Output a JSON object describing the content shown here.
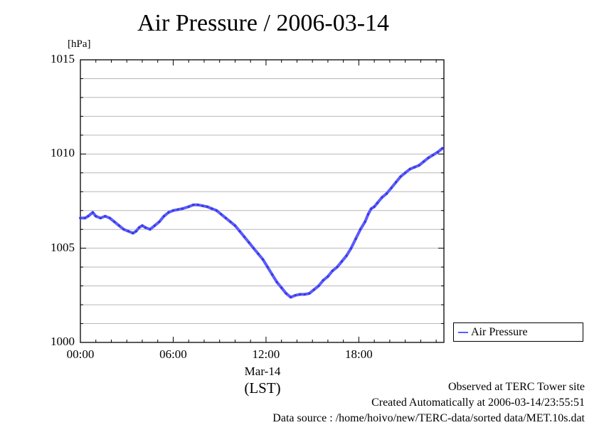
{
  "chart_data": {
    "type": "line",
    "title": "Air Pressure / 2006-03-14",
    "ylabel": "[hPa]",
    "xlabel_date": "Mar-14",
    "xlabel_tz": "(LST)",
    "ylim": [
      1000,
      1015
    ],
    "xlim": [
      0,
      23.5
    ],
    "y_ticks": [
      "1015",
      "1010",
      "1005",
      "1000"
    ],
    "y_tick_values": [
      1015,
      1010,
      1005,
      1000
    ],
    "x_ticks": [
      "00:00",
      "06:00",
      "12:00",
      "18:00"
    ],
    "x_tick_values": [
      0,
      6,
      12,
      18
    ],
    "grid": true,
    "legend_position": "bottom-right, outside plot",
    "color": "#5b5bff",
    "series": [
      {
        "name": "Air Pressure",
        "x": [
          0.0,
          0.3,
          0.5,
          0.8,
          1.0,
          1.3,
          1.6,
          1.9,
          2.2,
          2.5,
          2.8,
          3.1,
          3.4,
          3.6,
          3.8,
          4.0,
          4.2,
          4.5,
          4.8,
          5.1,
          5.4,
          5.7,
          6.0,
          6.3,
          6.6,
          7.0,
          7.3,
          7.6,
          7.9,
          8.2,
          8.5,
          8.8,
          9.1,
          9.4,
          9.7,
          10.0,
          10.3,
          10.6,
          10.9,
          11.2,
          11.5,
          11.8,
          12.1,
          12.4,
          12.7,
          13.0,
          13.3,
          13.6,
          13.9,
          14.2,
          14.5,
          14.8,
          15.1,
          15.4,
          15.7,
          16.0,
          16.3,
          16.6,
          16.9,
          17.2,
          17.5,
          17.8,
          18.1,
          18.4,
          18.6,
          18.8,
          19.0,
          19.2,
          19.5,
          19.8,
          20.1,
          20.4,
          20.7,
          21.0,
          21.3,
          21.6,
          21.9,
          22.2,
          22.5,
          22.8,
          23.1,
          23.4
        ],
        "values": [
          1006.6,
          1006.6,
          1006.7,
          1006.9,
          1006.7,
          1006.6,
          1006.7,
          1006.6,
          1006.4,
          1006.2,
          1006.0,
          1005.9,
          1005.8,
          1005.9,
          1006.1,
          1006.2,
          1006.1,
          1006.0,
          1006.2,
          1006.4,
          1006.7,
          1006.9,
          1007.0,
          1007.05,
          1007.1,
          1007.2,
          1007.3,
          1007.3,
          1007.25,
          1007.2,
          1007.1,
          1007.0,
          1006.8,
          1006.6,
          1006.4,
          1006.2,
          1005.9,
          1005.6,
          1005.3,
          1005.0,
          1004.7,
          1004.4,
          1004.0,
          1003.6,
          1003.2,
          1002.9,
          1002.6,
          1002.4,
          1002.5,
          1002.55,
          1002.55,
          1002.6,
          1002.8,
          1003.0,
          1003.3,
          1003.5,
          1003.8,
          1004.0,
          1004.3,
          1004.6,
          1005.0,
          1005.5,
          1006.0,
          1006.4,
          1006.8,
          1007.1,
          1007.2,
          1007.4,
          1007.7,
          1007.9,
          1008.2,
          1008.5,
          1008.8,
          1009.0,
          1009.2,
          1009.3,
          1009.4,
          1009.6,
          1009.8,
          1009.95,
          1010.1,
          1010.3
        ]
      }
    ]
  },
  "footer": {
    "line1": "Observed at TERC Tower site",
    "line2": "Created Automatically at 2006-03-14/23:55:51",
    "line3": "Data source : /home/hoivo/new/TERC-data/sorted  data/MET.10s.dat"
  }
}
